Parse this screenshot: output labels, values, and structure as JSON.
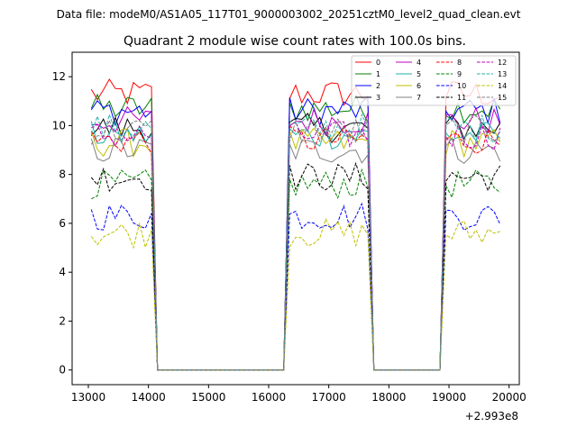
{
  "suptitle": "Data file: modeM0/AS1A05_117T01_9000003002_20251cztM0_level2_quad_clean.evt",
  "chart_data": {
    "type": "line",
    "title": "Quadrant 2 module wise count rates with 100.0s bins.",
    "xlabel": "",
    "ylabel": "",
    "x_offset_label": "+2.993e8",
    "xlim": [
      12730,
      20170
    ],
    "ylim": [
      -0.6,
      13.0
    ],
    "x_ticks": [
      13000,
      14000,
      15000,
      16000,
      17000,
      18000,
      19000,
      20000
    ],
    "y_ticks": [
      0,
      2,
      4,
      6,
      8,
      10,
      12
    ],
    "grid": false,
    "legend_position": "top-right",
    "segments": [
      {
        "start": 13050,
        "end": 14050
      },
      {
        "start": 16350,
        "end": 17650
      },
      {
        "start": 18950,
        "end": 19850
      }
    ],
    "series": [
      {
        "name": "0",
        "color": "#ff0000",
        "dash": "solid",
        "level": 11.3
      },
      {
        "name": "1",
        "color": "#008000",
        "dash": "solid",
        "level": 10.7
      },
      {
        "name": "2",
        "color": "#0000ff",
        "dash": "solid",
        "level": 10.6
      },
      {
        "name": "3",
        "color": "#000000",
        "dash": "solid",
        "level": 9.9
      },
      {
        "name": "4",
        "color": "#bf00bf",
        "dash": "solid",
        "level": 10.2
      },
      {
        "name": "5",
        "color": "#20b2aa",
        "dash": "solid",
        "level": 9.6
      },
      {
        "name": "6",
        "color": "#bfbf00",
        "dash": "solid",
        "level": 9.3
      },
      {
        "name": "7",
        "color": "#808080",
        "dash": "solid",
        "level": 9.0
      },
      {
        "name": "8",
        "color": "#ff0000",
        "dash": "dashed",
        "level": 9.4
      },
      {
        "name": "9",
        "color": "#008000",
        "dash": "dashed",
        "level": 7.6
      },
      {
        "name": "10",
        "color": "#0000ff",
        "dash": "dashed",
        "level": 6.3
      },
      {
        "name": "11",
        "color": "#000000",
        "dash": "dashed",
        "level": 7.9
      },
      {
        "name": "12",
        "color": "#bf00bf",
        "dash": "dashed",
        "level": 9.6
      },
      {
        "name": "13",
        "color": "#20b2aa",
        "dash": "dashed",
        "level": 9.9
      },
      {
        "name": "14",
        "color": "#bfbf00",
        "dash": "dashed",
        "level": 5.6
      },
      {
        "name": "15",
        "color": "#808080",
        "dash": "dashed",
        "level": 9.8
      }
    ]
  }
}
